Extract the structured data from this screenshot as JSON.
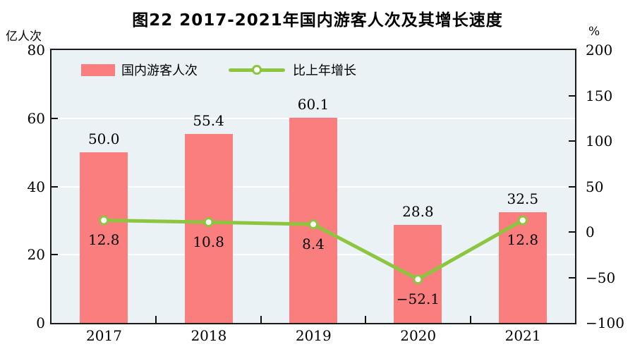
{
  "chart_data": {
    "type": "bar+line combo",
    "title": "图22  2017-2021年国内游客人次及其增长速度",
    "categories": [
      "2017",
      "2018",
      "2019",
      "2020",
      "2021"
    ],
    "series": [
      {
        "name": "国内游客人次",
        "type": "bar",
        "axis": "left",
        "unit": "亿人次",
        "values": [
          50.0,
          55.4,
          60.1,
          28.8,
          32.5
        ],
        "labels": [
          "50.0",
          "55.4",
          "60.1",
          "28.8",
          "32.5"
        ],
        "color": "#FB7E7E"
      },
      {
        "name": "比上年增长",
        "type": "line",
        "axis": "right",
        "unit": "%",
        "values": [
          12.8,
          10.8,
          8.4,
          -52.1,
          12.8
        ],
        "labels": [
          "12.8",
          "10.8",
          "8.4",
          "−52.1",
          "12.8"
        ],
        "color": "#8CC63F"
      }
    ],
    "left_axis": {
      "unit": "亿人次",
      "ylim": [
        0,
        80
      ],
      "ticks": [
        {
          "v": 0,
          "label": "0"
        },
        {
          "v": 20,
          "label": "20"
        },
        {
          "v": 40,
          "label": "40"
        },
        {
          "v": 60,
          "label": "60"
        },
        {
          "v": 80,
          "label": "80"
        }
      ]
    },
    "right_axis": {
      "unit": "%",
      "ylim": [
        -100,
        200
      ],
      "ticks": [
        {
          "v": -100,
          "label": "−100"
        },
        {
          "v": -50,
          "label": "−50"
        },
        {
          "v": 0,
          "label": "0"
        },
        {
          "v": 50,
          "label": "50"
        },
        {
          "v": 100,
          "label": "100"
        },
        {
          "v": 150,
          "label": "150"
        },
        {
          "v": 200,
          "label": "200"
        }
      ]
    },
    "gridlines_at_left_values": [
      20,
      40,
      60
    ],
    "legend_position": "top-left inside plot",
    "plot_background": "#EAF2F6",
    "frame_color": "#1b1b1b",
    "marker_style": "white-filled circle with green ring"
  }
}
